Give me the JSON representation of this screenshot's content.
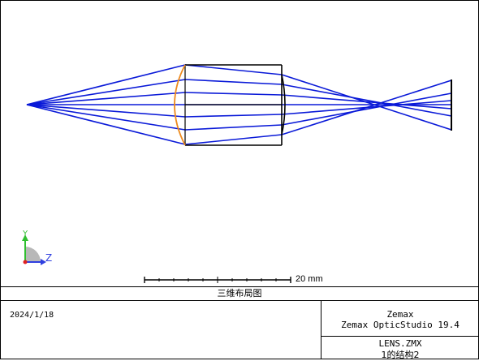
{
  "layout_title": "三维布局图",
  "date": "2024/1/18",
  "software": {
    "company": "Zemax",
    "product": "Zemax OpticStudio 19.4"
  },
  "file": {
    "name": "LENS.ZMX",
    "configuration": "1的结构2"
  },
  "scale_bar": {
    "label": "20 mm"
  },
  "axes": {
    "y_label": "Y",
    "z_label": "Z"
  },
  "colors": {
    "rays": "#0a1ad8",
    "lens_front_surface": "#ee8a1c",
    "lens_body": "#000000",
    "axis_y": "#2fbf2f",
    "axis_z": "#2f3fe0",
    "axis_x": "#e02020",
    "axis_disc": "#b8b8b8"
  }
}
